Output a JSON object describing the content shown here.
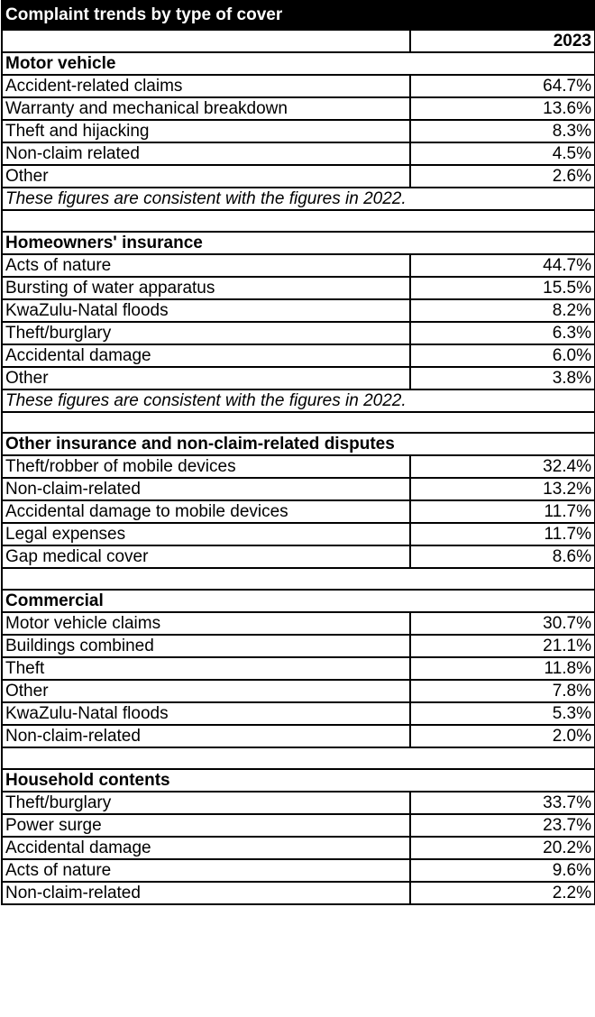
{
  "title": "Complaint trends by type of cover",
  "year_header": "2023",
  "sections": [
    {
      "heading": "Motor vehicle",
      "rows": [
        {
          "label": "Accident-related claims",
          "value": "64.7%"
        },
        {
          "label": "Warranty and mechanical breakdown",
          "value": "13.6%"
        },
        {
          "label": "Theft and hijacking",
          "value": "8.3%"
        },
        {
          "label": "Non-claim related",
          "value": "4.5%"
        },
        {
          "label": "Other",
          "value": "2.6%"
        }
      ],
      "note": "These figures are consistent with the figures in 2022."
    },
    {
      "heading": "Homeowners' insurance",
      "rows": [
        {
          "label": "Acts of nature",
          "value": "44.7%"
        },
        {
          "label": "Bursting of water apparatus",
          "value": "15.5%"
        },
        {
          "label": "KwaZulu-Natal floods",
          "value": "8.2%"
        },
        {
          "label": "Theft/burglary",
          "value": "6.3%"
        },
        {
          "label": "Accidental damage",
          "value": "6.0%"
        },
        {
          "label": "Other",
          "value": "3.8%"
        }
      ],
      "note": "These figures are consistent with the figures in 2022."
    },
    {
      "heading": "Other insurance and non-claim-related disputes",
      "rows": [
        {
          "label": "Theft/robber of mobile devices",
          "value": "32.4%"
        },
        {
          "label": "Non-claim-related",
          "value": "13.2%"
        },
        {
          "label": "Accidental damage to mobile devices",
          "value": "11.7%"
        },
        {
          "label": "Legal expenses",
          "value": "11.7%"
        },
        {
          "label": "Gap medical cover",
          "value": "8.6%"
        }
      ]
    },
    {
      "heading": "Commercial",
      "rows": [
        {
          "label": "Motor vehicle claims",
          "value": "30.7%"
        },
        {
          "label": "Buildings combined",
          "value": "21.1%"
        },
        {
          "label": "Theft",
          "value": "11.8%"
        },
        {
          "label": "Other",
          "value": "7.8%"
        },
        {
          "label": "KwaZulu-Natal floods",
          "value": "5.3%"
        },
        {
          "label": "Non-claim-related",
          "value": "2.0%"
        }
      ]
    },
    {
      "heading": "Household contents",
      "rows": [
        {
          "label": "Theft/burglary",
          "value": "33.7%"
        },
        {
          "label": "Power surge",
          "value": "23.7%"
        },
        {
          "label": "Accidental damage",
          "value": "20.2%"
        },
        {
          "label": "Acts of nature",
          "value": "9.6%"
        },
        {
          "label": "Non-claim-related",
          "value": "2.2%"
        }
      ]
    }
  ]
}
